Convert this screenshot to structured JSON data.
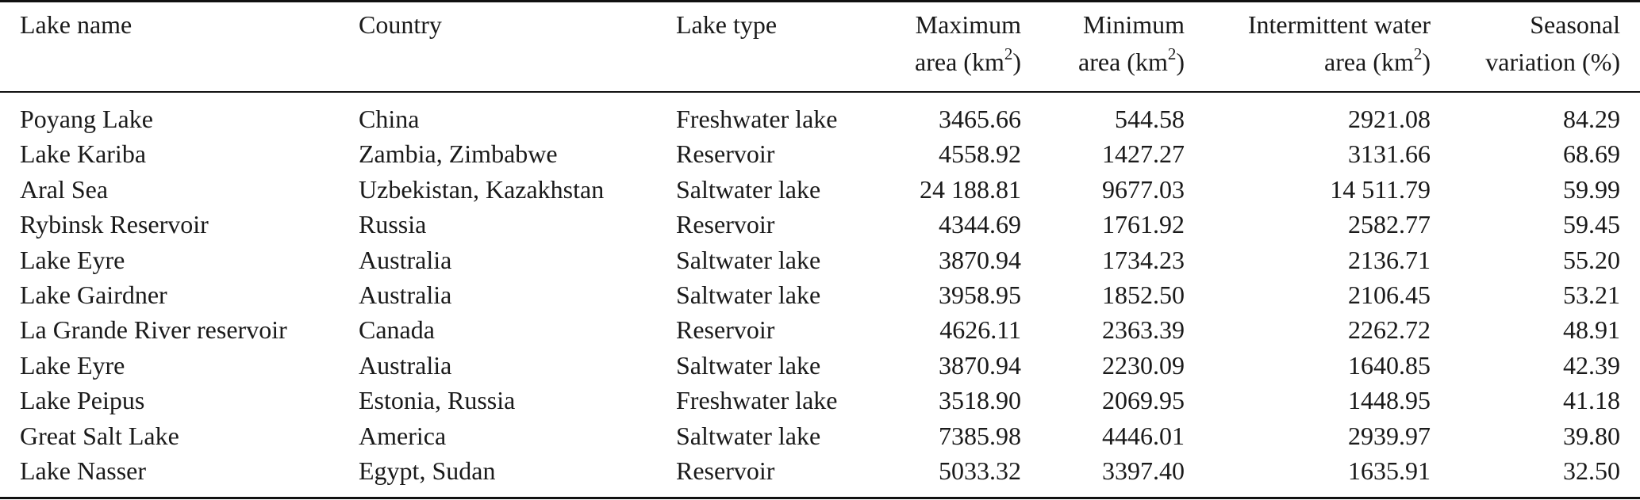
{
  "table": {
    "headers": {
      "lake_name": "Lake name",
      "country": "Country",
      "lake_type": "Lake type",
      "max_area_line1": "Maximum",
      "max_area_line2": "area (km",
      "min_area_line1": "Minimum",
      "min_area_line2": "area (km",
      "intermittent_line1": "Intermittent water",
      "intermittent_line2": "area (km",
      "seasonal_line1": "Seasonal",
      "seasonal_line2": "variation (%)",
      "superscript_2": "2",
      "close_paren": ")"
    },
    "rows": [
      {
        "name": "Poyang Lake",
        "country": "China",
        "type": "Freshwater lake",
        "max": "3465.66",
        "min": "544.58",
        "intermittent": "2921.08",
        "seasonal": "84.29"
      },
      {
        "name": "Lake Kariba",
        "country": "Zambia, Zimbabwe",
        "type": "Reservoir",
        "max": "4558.92",
        "min": "1427.27",
        "intermittent": "3131.66",
        "seasonal": "68.69"
      },
      {
        "name": "Aral Sea",
        "country": "Uzbekistan, Kazakhstan",
        "type": "Saltwater lake",
        "max": "24 188.81",
        "min": "9677.03",
        "intermittent": "14 511.79",
        "seasonal": "59.99"
      },
      {
        "name": "Rybinsk Reservoir",
        "country": "Russia",
        "type": "Reservoir",
        "max": "4344.69",
        "min": "1761.92",
        "intermittent": "2582.77",
        "seasonal": "59.45"
      },
      {
        "name": "Lake Eyre",
        "country": "Australia",
        "type": "Saltwater lake",
        "max": "3870.94",
        "min": "1734.23",
        "intermittent": "2136.71",
        "seasonal": "55.20"
      },
      {
        "name": "Lake Gairdner",
        "country": "Australia",
        "type": "Saltwater lake",
        "max": "3958.95",
        "min": "1852.50",
        "intermittent": "2106.45",
        "seasonal": "53.21"
      },
      {
        "name": "La Grande River reservoir",
        "country": "Canada",
        "type": "Reservoir",
        "max": "4626.11",
        "min": "2363.39",
        "intermittent": "2262.72",
        "seasonal": "48.91"
      },
      {
        "name": "Lake Eyre",
        "country": "Australia",
        "type": "Saltwater lake",
        "max": "3870.94",
        "min": "2230.09",
        "intermittent": "1640.85",
        "seasonal": "42.39"
      },
      {
        "name": "Lake Peipus",
        "country": "Estonia, Russia",
        "type": "Freshwater lake",
        "max": "3518.90",
        "min": "2069.95",
        "intermittent": "1448.95",
        "seasonal": "41.18"
      },
      {
        "name": "Great Salt Lake",
        "country": "America",
        "type": "Saltwater lake",
        "max": "7385.98",
        "min": "4446.01",
        "intermittent": "2939.97",
        "seasonal": "39.80"
      },
      {
        "name": "Lake Nasser",
        "country": "Egypt, Sudan",
        "type": "Reservoir",
        "max": "5033.32",
        "min": "3397.40",
        "intermittent": "1635.91",
        "seasonal": "32.50"
      }
    ]
  }
}
